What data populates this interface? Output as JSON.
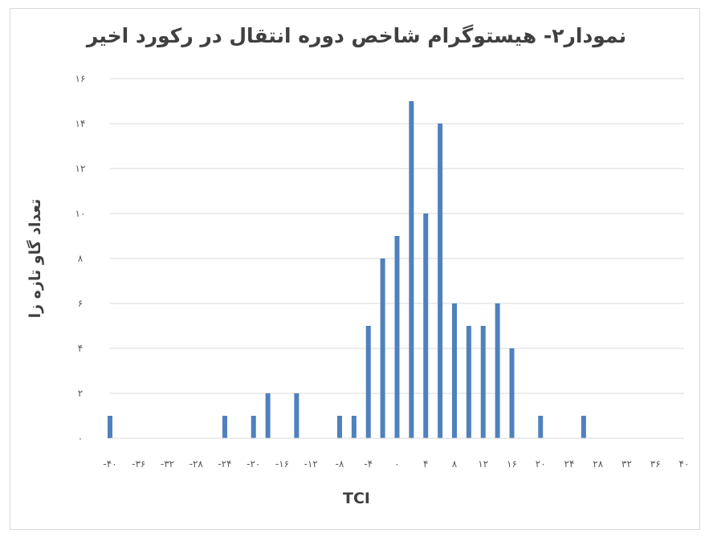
{
  "chart_data": {
    "type": "bar",
    "title": "نمودار۲- هیستوگرام  شاخص دوره انتقال در رکورد اخیر",
    "xlabel": "TCI",
    "ylabel": "تعداد گاو تازه زا",
    "ylim": [
      0,
      16
    ],
    "y_ticks": [
      {
        "value": 0,
        "label": "۰"
      },
      {
        "value": 2,
        "label": "۲"
      },
      {
        "value": 4,
        "label": "۴"
      },
      {
        "value": 6,
        "label": "۶"
      },
      {
        "value": 8,
        "label": "۸"
      },
      {
        "value": 10,
        "label": "۱۰"
      },
      {
        "value": 12,
        "label": "۱۲"
      },
      {
        "value": 14,
        "label": "۱۴"
      },
      {
        "value": 16,
        "label": "۱۶"
      }
    ],
    "xlim": [
      -40,
      40
    ],
    "x_ticks": [
      {
        "value": -40,
        "label": "-۴۰"
      },
      {
        "value": -36,
        "label": "-۳۶"
      },
      {
        "value": -32,
        "label": "-۳۲"
      },
      {
        "value": -28,
        "label": "-۲۸"
      },
      {
        "value": -24,
        "label": "-۲۴"
      },
      {
        "value": -20,
        "label": "-۲۰"
      },
      {
        "value": -16,
        "label": "-۱۶"
      },
      {
        "value": -12,
        "label": "-۱۲"
      },
      {
        "value": -8,
        "label": "-۸"
      },
      {
        "value": -4,
        "label": "-۴"
      },
      {
        "value": 0,
        "label": "۰"
      },
      {
        "value": 4,
        "label": "۴"
      },
      {
        "value": 8,
        "label": "۸"
      },
      {
        "value": 12,
        "label": "۱۲"
      },
      {
        "value": 16,
        "label": "۱۶"
      },
      {
        "value": 20,
        "label": "۲۰"
      },
      {
        "value": 24,
        "label": "۲۴"
      },
      {
        "value": 28,
        "label": "۲۸"
      },
      {
        "value": 32,
        "label": "۳۲"
      },
      {
        "value": 36,
        "label": "۳۶"
      },
      {
        "value": 40,
        "label": "۴۰"
      }
    ],
    "bars": [
      {
        "x": -40,
        "y": 1
      },
      {
        "x": -24,
        "y": 1
      },
      {
        "x": -20,
        "y": 1
      },
      {
        "x": -18,
        "y": 2
      },
      {
        "x": -14,
        "y": 2
      },
      {
        "x": -8,
        "y": 1
      },
      {
        "x": -6,
        "y": 1
      },
      {
        "x": -4,
        "y": 5
      },
      {
        "x": -2,
        "y": 8
      },
      {
        "x": 0,
        "y": 9
      },
      {
        "x": 2,
        "y": 15
      },
      {
        "x": 4,
        "y": 10
      },
      {
        "x": 6,
        "y": 14
      },
      {
        "x": 8,
        "y": 6
      },
      {
        "x": 10,
        "y": 5
      },
      {
        "x": 12,
        "y": 5
      },
      {
        "x": 14,
        "y": 6
      },
      {
        "x": 16,
        "y": 4
      },
      {
        "x": 20,
        "y": 1
      },
      {
        "x": 26,
        "y": 1
      }
    ],
    "grid": true,
    "legend": "none",
    "bar_color": "#4f81bd",
    "grid_color": "#d9d9d9",
    "axis_color": "#d9d9d9"
  }
}
